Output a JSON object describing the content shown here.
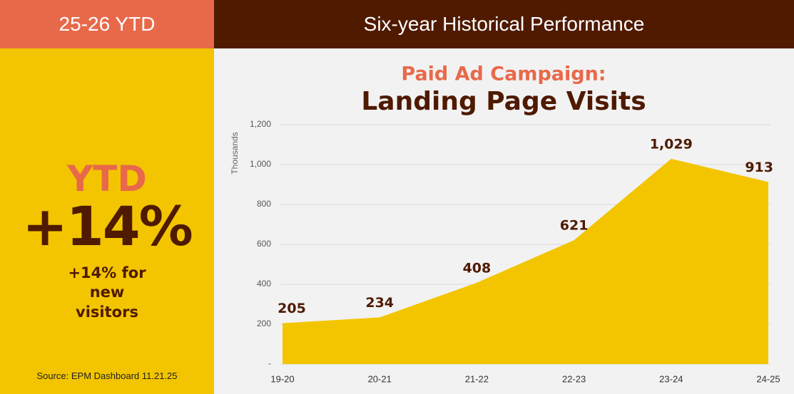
{
  "left_panel": {
    "header": "25-26 YTD",
    "kpi_label": "YTD",
    "kpi_value": "+14%",
    "kpi_note": "+14% for new visitors",
    "source": "Source: EPM Dashboard 11.21.25"
  },
  "right_panel": {
    "header": "Six-year Historical Performance"
  },
  "chart_data": {
    "type": "area",
    "title": "Paid Ad Campaign:",
    "subtitle": "Landing Page Visits",
    "y_label": "Thousands",
    "categories": [
      "19-20",
      "20-21",
      "21-22",
      "22-23",
      "23-24",
      "24-25"
    ],
    "values": [
      205,
      234,
      408,
      621,
      1029,
      913
    ],
    "value_labels": [
      "205",
      "234",
      "408",
      "621",
      "1,029",
      "913"
    ],
    "color": "#f2c500",
    "ylim": [
      0,
      1200
    ],
    "yticks": [
      {
        "value": 0,
        "label": "-"
      },
      200,
      400,
      600,
      800,
      {
        "value": 1000,
        "label": "1,000"
      },
      {
        "value": 1200,
        "label": "1,200"
      }
    ],
    "grid": true
  }
}
